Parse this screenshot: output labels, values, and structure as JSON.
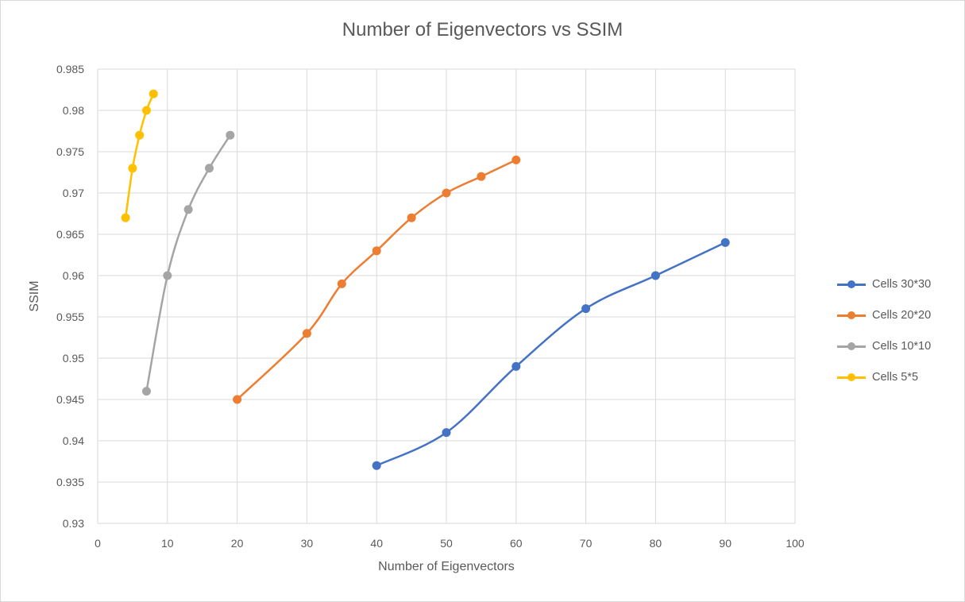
{
  "chart_data": {
    "type": "line",
    "title": "Number of Eigenvectors vs SSIM",
    "xlabel": "Number of Eigenvectors",
    "ylabel": "SSIM",
    "xlim": [
      0,
      100
    ],
    "ylim": [
      0.93,
      0.985
    ],
    "x_ticks": [
      "0",
      "10",
      "20",
      "30",
      "40",
      "50",
      "60",
      "70",
      "80",
      "90",
      "100"
    ],
    "y_ticks": [
      "0.93",
      "0.935",
      "0.94",
      "0.945",
      "0.95",
      "0.955",
      "0.96",
      "0.965",
      "0.97",
      "0.975",
      "0.98",
      "0.985"
    ],
    "grid": true,
    "smooth": true,
    "legend_position": "right",
    "series": [
      {
        "name": "Cells 30*30",
        "color": "#4472c4",
        "x": [
          40,
          50,
          60,
          70,
          80,
          90
        ],
        "y": [
          0.937,
          0.941,
          0.949,
          0.956,
          0.96,
          0.964
        ]
      },
      {
        "name": "Cells 20*20",
        "color": "#ed7d31",
        "x": [
          20,
          30,
          35,
          40,
          45,
          50,
          55,
          60
        ],
        "y": [
          0.945,
          0.953,
          0.959,
          0.963,
          0.967,
          0.97,
          0.972,
          0.974
        ]
      },
      {
        "name": "Cells 10*10",
        "color": "#a5a5a5",
        "x": [
          7,
          10,
          13,
          16,
          19
        ],
        "y": [
          0.946,
          0.96,
          0.968,
          0.973,
          0.977
        ]
      },
      {
        "name": "Cells 5*5",
        "color": "#ffc000",
        "x": [
          4,
          5,
          6,
          7,
          8
        ],
        "y": [
          0.967,
          0.973,
          0.977,
          0.98,
          0.982
        ]
      }
    ]
  }
}
